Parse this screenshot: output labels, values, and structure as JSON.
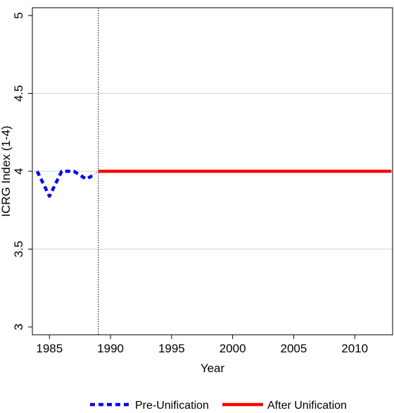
{
  "chart_data": {
    "type": "line",
    "xlabel": "Year",
    "ylabel": "ICRG Index (1-4)",
    "xlim": [
      1983.6,
      2013.1
    ],
    "ylim": [
      2.95,
      5.05
    ],
    "x_ticks": [
      1985,
      1990,
      1995,
      2000,
      2005,
      2010
    ],
    "y_ticks": [
      3,
      3.5,
      4,
      4.5,
      5
    ],
    "x_tick_labels": [
      "1985",
      "1990",
      "1995",
      "2000",
      "2005",
      "2010"
    ],
    "y_tick_labels": [
      "3",
      "3.5",
      "4",
      "4.5",
      "5"
    ],
    "grid": "horizontal",
    "legend_position": "bottom",
    "vline": {
      "x": 1989,
      "style": "dotted"
    },
    "connector": {
      "from": [
        1988.5,
        3.97
      ],
      "to": [
        1989,
        4.0
      ],
      "style": "dotted",
      "color": "#999999"
    },
    "series": [
      {
        "name": "Pre-Unification",
        "color": "#0000ff",
        "style": "dashed",
        "x": [
          1984,
          1985,
          1986,
          1987,
          1988,
          1988.5
        ],
        "y": [
          4.0,
          3.84,
          4.0,
          4.0,
          3.95,
          3.97
        ]
      },
      {
        "name": "After Unification",
        "color": "#ff0000",
        "style": "solid",
        "x": [
          1989,
          2013
        ],
        "y": [
          4.0,
          4.0
        ]
      }
    ]
  }
}
